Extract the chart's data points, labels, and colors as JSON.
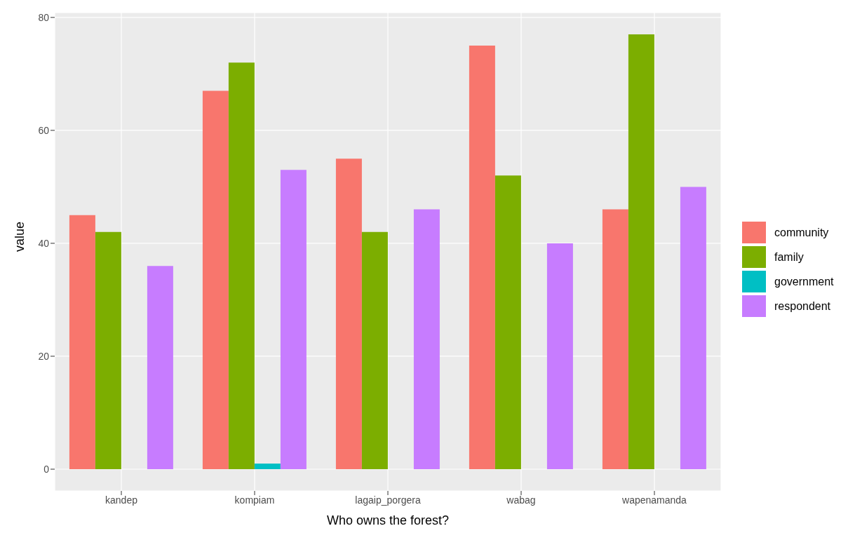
{
  "chart_data": {
    "type": "bar",
    "xlabel": "Who owns the forest?",
    "ylabel": "value",
    "categories": [
      "kandep",
      "kompiam",
      "lagaip_porgera",
      "wabag",
      "wapenamanda"
    ],
    "series": [
      {
        "name": "community",
        "color": "#f8766d",
        "values": [
          45,
          67,
          55,
          75,
          46
        ]
      },
      {
        "name": "family",
        "color": "#7cae00",
        "values": [
          42,
          72,
          42,
          52,
          77
        ]
      },
      {
        "name": "government",
        "color": "#00bfc4",
        "values": [
          null,
          1,
          null,
          null,
          null
        ]
      },
      {
        "name": "respondent",
        "color": "#c77cff",
        "values": [
          36,
          53,
          46,
          40,
          50
        ]
      }
    ],
    "ylim": [
      -3.85,
      80.85
    ],
    "yticks": [
      0,
      20,
      40,
      60,
      80
    ],
    "grid": true,
    "legend": "right"
  }
}
